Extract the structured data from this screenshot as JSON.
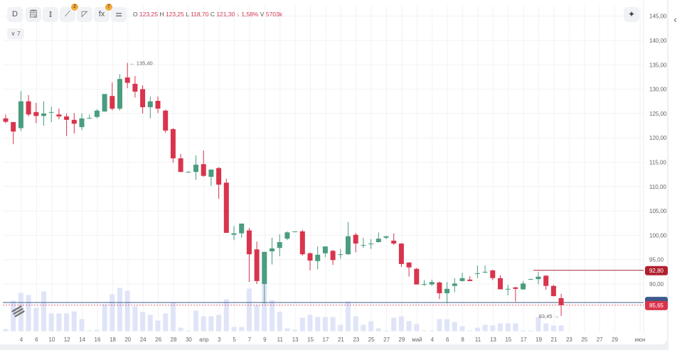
{
  "toolbar": {
    "interval_label": "D",
    "tools": [
      {
        "name": "notes-icon",
        "glyph": "🗒"
      },
      {
        "name": "candles-icon",
        "glyph": "⫾"
      },
      {
        "name": "drawing-tools-icon",
        "glyph": "⟋",
        "badge": "2"
      },
      {
        "name": "shapes-icon",
        "glyph": "◸"
      },
      {
        "name": "indicators-icon",
        "glyph": "fx",
        "badge": "7"
      },
      {
        "name": "settings-sliders-icon",
        "glyph": "⚌"
      }
    ],
    "ai_icon": "✦",
    "collapse_label": "∨ 7",
    "panel_toggle_icon": "‹"
  },
  "legend": {
    "o_label": "O",
    "o": "123,25",
    "h_label": "H",
    "h": "123,25",
    "l_label": "L",
    "l": "118,70",
    "c_label": "C",
    "c": "121,30",
    "change": "↓ 1,58%",
    "v_label": "V",
    "v": "5703k"
  },
  "colors": {
    "up": "#4a9d7f",
    "down": "#d9344c",
    "volume": "#dfe4f8",
    "grid": "#f1f2f4",
    "blue_line": "#3d5a8a",
    "level_line": "#a52a35"
  },
  "chart_data": {
    "type": "candlestick",
    "y_ticks": [
      "145,00",
      "140,00",
      "135,00",
      "130,00",
      "125,00",
      "120,00",
      "115,00",
      "110,00",
      "105,00",
      "100,00",
      "95,00",
      "90,00"
    ],
    "y_tick_values": [
      145,
      140,
      135,
      130,
      125,
      120,
      115,
      110,
      105,
      100,
      95,
      90
    ],
    "ylim": [
      83,
      145
    ],
    "x_ticks": [
      "4",
      "6",
      "10",
      "12",
      "14",
      "16",
      "18",
      "20",
      "24",
      "26",
      "28",
      "30",
      "апр",
      "3",
      "5",
      "7",
      "9",
      "11",
      "13",
      "15",
      "17",
      "21",
      "23",
      "25",
      "27",
      "29",
      "май",
      "4",
      "6",
      "8",
      "11",
      "13",
      "15",
      "17",
      "19",
      "21",
      "23",
      "25",
      "27",
      "29",
      "июн"
    ],
    "annotations": {
      "high": "135,40",
      "low": "83,45"
    },
    "price_labels": {
      "level": "92,80",
      "level_value": 92.8,
      "last": "85,65",
      "last_value": 85.65,
      "blue_value": 86.2
    },
    "ohlc": [
      [
        124,
        124.8,
        123,
        123.3
      ],
      [
        123.25,
        123.25,
        118.7,
        121.3
      ],
      [
        122,
        129.6,
        121.4,
        127.5
      ],
      [
        127.5,
        128.8,
        124.4,
        124.8
      ],
      [
        125.3,
        127.2,
        123,
        124.5
      ],
      [
        124.5,
        127.5,
        122.5,
        125
      ],
      [
        125.3,
        126.4,
        123.2,
        125.3
      ],
      [
        124.8,
        126,
        123.8,
        124.4
      ],
      [
        124.4,
        125,
        120.4,
        123.7
      ],
      [
        123.7,
        125.1,
        120.9,
        122.9
      ],
      [
        122.2,
        125,
        121.6,
        124
      ],
      [
        124.1,
        124.8,
        124,
        124.1
      ],
      [
        124.3,
        125.9,
        124,
        125.6
      ],
      [
        125.4,
        129,
        125.4,
        129
      ],
      [
        128.6,
        131.4,
        125.6,
        126
      ],
      [
        126,
        133.1,
        125.6,
        132.1
      ],
      [
        132.4,
        135.4,
        130.2,
        131.3
      ],
      [
        131.1,
        132.7,
        128.3,
        129.5
      ],
      [
        130,
        130.8,
        125,
        126.3
      ],
      [
        126.3,
        128.5,
        124,
        127.5
      ],
      [
        127.6,
        128.5,
        125.1,
        126
      ],
      [
        125.6,
        125.8,
        121,
        121.5
      ],
      [
        121.8,
        122,
        114.9,
        115.8
      ],
      [
        115.8,
        116.7,
        113,
        113
      ],
      [
        113,
        113.2,
        113,
        113
      ],
      [
        113,
        116.4,
        111.4,
        114.5
      ],
      [
        114.6,
        117.4,
        112,
        112.2
      ],
      [
        112,
        113.5,
        110.1,
        113.5
      ],
      [
        113.8,
        114,
        107.5,
        110.4
      ],
      [
        110.8,
        111.6,
        100.5,
        100.5
      ],
      [
        100.1,
        101.9,
        99,
        100.4
      ],
      [
        100.4,
        102.4,
        99.5,
        102.4
      ],
      [
        101,
        101.5,
        90.4,
        96.1
      ],
      [
        97.1,
        98.7,
        90,
        90.6
      ],
      [
        90,
        96.6,
        86,
        96.6
      ],
      [
        96.7,
        99.5,
        94,
        97.3
      ],
      [
        97.4,
        100.2,
        95.7,
        98.6
      ],
      [
        99.3,
        100.8,
        99,
        100.6
      ],
      [
        100.8,
        100.8,
        100.6,
        100.8
      ],
      [
        100.8,
        101.1,
        95.8,
        96.1
      ],
      [
        96.3,
        96.5,
        92.8,
        94.8
      ],
      [
        94.7,
        97.7,
        93,
        96
      ],
      [
        96.3,
        97.7,
        95.5,
        97.7
      ],
      [
        96.8,
        97,
        93.9,
        94.9
      ],
      [
        96.1,
        97.2,
        95.2,
        96.1
      ],
      [
        96.1,
        102.7,
        96,
        99.8
      ],
      [
        100.1,
        100.5,
        96.5,
        98.3
      ],
      [
        98,
        99.5,
        97.4,
        98
      ],
      [
        98.3,
        99.2,
        97.2,
        98.3
      ],
      [
        98.6,
        100.6,
        98.5,
        99.3
      ],
      [
        99.5,
        99.8,
        99.2,
        99.8
      ],
      [
        98.9,
        100.4,
        98,
        98.3
      ],
      [
        98.3,
        98.4,
        93.5,
        94.1
      ],
      [
        94.4,
        94.5,
        91.5,
        93.4
      ],
      [
        93.1,
        93.3,
        89.9,
        89.9
      ],
      [
        90,
        90.8,
        89.6,
        90
      ],
      [
        89.9,
        90.9,
        89.6,
        90.4
      ],
      [
        90.3,
        90.5,
        86.9,
        88.1
      ],
      [
        88.1,
        90.4,
        86,
        89
      ],
      [
        89.6,
        91.2,
        88.3,
        90.1
      ],
      [
        90.6,
        92.3,
        90.5,
        91.2
      ],
      [
        90.9,
        91.6,
        90.6,
        90.6
      ],
      [
        92.2,
        93.8,
        91.2,
        92.2
      ],
      [
        92.5,
        93.8,
        92.2,
        92.5
      ],
      [
        92.8,
        92.9,
        90.8,
        91.2
      ],
      [
        91.2,
        91.8,
        88.9,
        88.9
      ],
      [
        89,
        89.8,
        87.7,
        89
      ],
      [
        89.3,
        89.4,
        86.4,
        89
      ],
      [
        88.9,
        90.6,
        88.8,
        90.1
      ],
      [
        91,
        91.1,
        90.9,
        91
      ],
      [
        91,
        92.5,
        89.9,
        91.5
      ],
      [
        91.7,
        91.8,
        88.8,
        89.6
      ],
      [
        89.6,
        89.8,
        87.5,
        87.5
      ],
      [
        87.1,
        88,
        83.45,
        85.65
      ]
    ],
    "volume": [
      3,
      43,
      54,
      51,
      33,
      56,
      25,
      25,
      25,
      28,
      17,
      1,
      2,
      38,
      52,
      61,
      57,
      35,
      27,
      23,
      15,
      25,
      40,
      5,
      1,
      29,
      21,
      21,
      23,
      45,
      6,
      6,
      60,
      37,
      67,
      44,
      27,
      4,
      2,
      19,
      23,
      20,
      20,
      20,
      9,
      42,
      21,
      9,
      14,
      4,
      1,
      19,
      21,
      14,
      10,
      1,
      1,
      17,
      17,
      13,
      7,
      1,
      5,
      9,
      8,
      11,
      11,
      11,
      1,
      1,
      20,
      11,
      8,
      8
    ]
  }
}
